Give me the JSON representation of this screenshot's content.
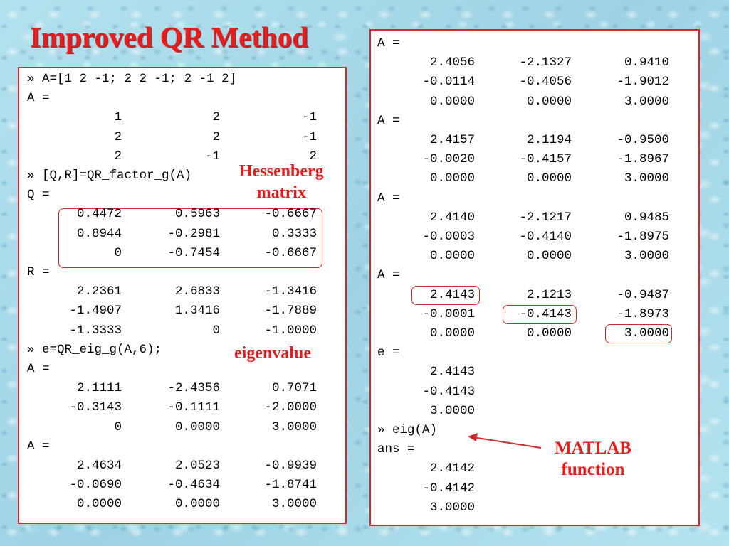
{
  "title": "Improved QR Method",
  "left_panel": {
    "lines": [
      {
        "prompt": "»",
        "text": "A=[1 2 -1; 2 2 -1; 2 -1 2]"
      },
      {
        "text": "A ="
      },
      {
        "row": [
          "1",
          "2",
          "-1"
        ]
      },
      {
        "row": [
          "2",
          "2",
          "-1"
        ]
      },
      {
        "row": [
          "2",
          "-1",
          "2"
        ]
      },
      {
        "prompt": "»",
        "text": "[Q,R]=QR_factor_g(A)"
      },
      {
        "text": "Q ="
      },
      {
        "row": [
          "0.4472",
          "0.5963",
          "-0.6667"
        ]
      },
      {
        "row": [
          "0.8944",
          "-0.2981",
          "0.3333"
        ]
      },
      {
        "row": [
          "0",
          "-0.7454",
          "-0.6667"
        ]
      },
      {
        "text": "R ="
      },
      {
        "row": [
          "2.2361",
          "2.6833",
          "-1.3416"
        ]
      },
      {
        "row": [
          "-1.4907",
          "1.3416",
          "-1.7889"
        ]
      },
      {
        "row": [
          "-1.3333",
          "0",
          "-1.0000"
        ]
      },
      {
        "prompt": "»",
        "text": "e=QR_eig_g(A,6);"
      },
      {
        "text": "A ="
      },
      {
        "row": [
          "2.1111",
          "-2.4356",
          "0.7071"
        ]
      },
      {
        "row": [
          "-0.3143",
          "-0.1111",
          "-2.0000"
        ]
      },
      {
        "row": [
          "0",
          "0.0000",
          "3.0000"
        ]
      },
      {
        "text": "A ="
      },
      {
        "row": [
          "2.4634",
          "2.0523",
          "-0.9939"
        ]
      },
      {
        "row": [
          "-0.0690",
          "-0.4634",
          "-1.8741"
        ]
      },
      {
        "row": [
          "0.0000",
          "0.0000",
          "3.0000"
        ]
      }
    ]
  },
  "right_panel": {
    "lines": [
      {
        "text": "A ="
      },
      {
        "row": [
          "2.4056",
          "-2.1327",
          "0.9410"
        ]
      },
      {
        "row": [
          "-0.0114",
          "-0.4056",
          "-1.9012"
        ]
      },
      {
        "row": [
          "0.0000",
          "0.0000",
          "3.0000"
        ]
      },
      {
        "text": "A ="
      },
      {
        "row": [
          "2.4157",
          "2.1194",
          "-0.9500"
        ]
      },
      {
        "row": [
          "-0.0020",
          "-0.4157",
          "-1.8967"
        ]
      },
      {
        "row": [
          "0.0000",
          "0.0000",
          "3.0000"
        ]
      },
      {
        "text": "A ="
      },
      {
        "row": [
          "2.4140",
          "-2.1217",
          "0.9485"
        ]
      },
      {
        "row": [
          "-0.0003",
          "-0.4140",
          "-1.8975"
        ]
      },
      {
        "row": [
          "0.0000",
          "0.0000",
          "3.0000"
        ]
      },
      {
        "text": "A ="
      },
      {
        "row": [
          "2.4143",
          "2.1213",
          "-0.9487"
        ]
      },
      {
        "row": [
          "-0.0001",
          "-0.4143",
          "-1.8973"
        ]
      },
      {
        "row": [
          "0.0000",
          "0.0000",
          "3.0000"
        ]
      },
      {
        "text": "e ="
      },
      {
        "row": [
          "2.4143"
        ]
      },
      {
        "row": [
          "-0.4143"
        ]
      },
      {
        "row": [
          "3.0000"
        ]
      },
      {
        "prompt": "»",
        "text": "eig(A)"
      },
      {
        "text": "ans ="
      },
      {
        "row": [
          "2.4142"
        ]
      },
      {
        "row": [
          "-0.4142"
        ]
      },
      {
        "row": [
          "3.0000"
        ]
      }
    ]
  },
  "annotations": {
    "hessenberg": [
      "Hessenberg",
      "matrix"
    ],
    "eigenvalue": "eigenvalue",
    "matlab": [
      "MATLAB",
      "function"
    ]
  },
  "colors": {
    "accent": "#e41e1e",
    "panel_border": "#d22a2a",
    "background": "#a9dbe9"
  }
}
